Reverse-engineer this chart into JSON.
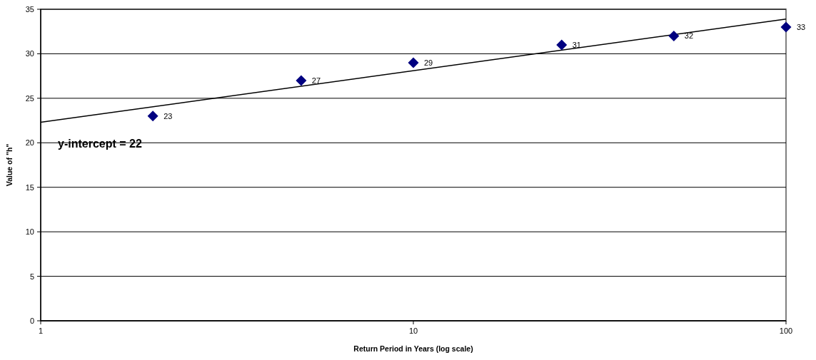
{
  "chart_data": {
    "type": "scatter",
    "xlabel": "Return Period in Years (log scale)",
    "ylabel": "Value of \"h\"",
    "annotations": [
      "y-intercept = 22"
    ],
    "log": "x",
    "xlim": [
      1,
      100
    ],
    "xticks": [
      1,
      10,
      100
    ],
    "ylim": [
      0,
      35
    ],
    "yticks": [
      0,
      5,
      10,
      15,
      20,
      25,
      30,
      35
    ],
    "grid": "y",
    "marker": "diamond",
    "series": [
      {
        "color": "#000080",
        "x": [
          2,
          5,
          10,
          25,
          50,
          100
        ],
        "values": [
          23,
          27,
          29,
          31,
          32,
          33
        ],
        "value_labels": [
          "23",
          "27",
          "29",
          "31",
          "32",
          "33"
        ]
      },
      {
        "type": "line",
        "color": "#000000",
        "marker": "none",
        "x": [
          1,
          100
        ],
        "values": [
          22.3,
          33.9
        ]
      }
    ]
  }
}
